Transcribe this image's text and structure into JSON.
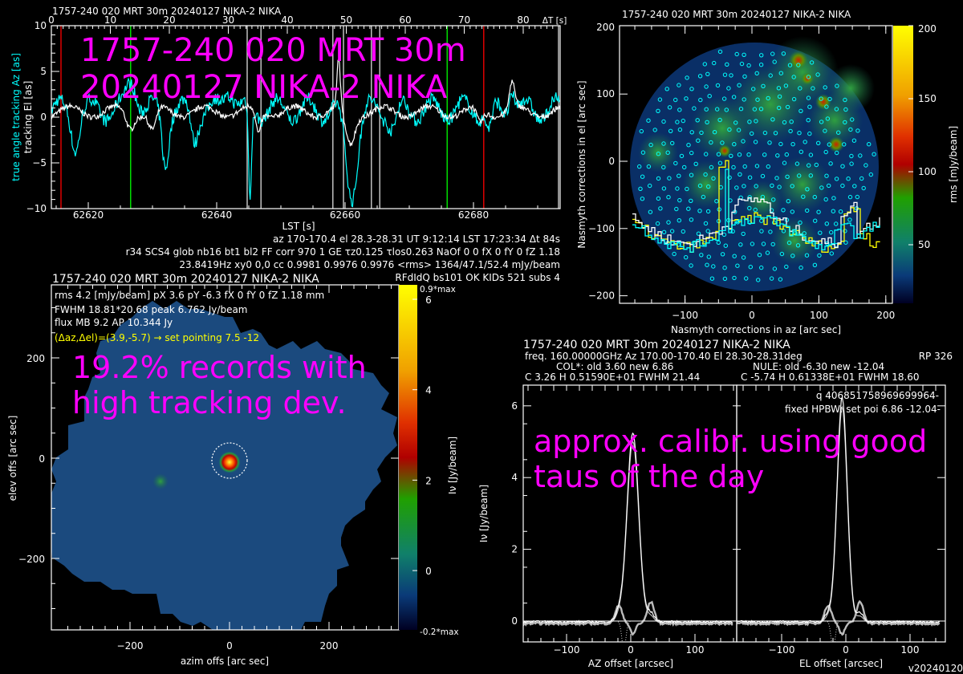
{
  "colors": {
    "cyan": "#00ffff",
    "white": "#ffffff",
    "red": "#ff0000",
    "green": "#00ff00",
    "yellow": "#ffff00",
    "magenta": "#ff00ff"
  },
  "overlays": {
    "title_big": "1757-240 020 MRT 30m  20240127 NIKA-2 NIKA",
    "tracking_warning": "19.2% records with high tracking dev.",
    "calibration_note": "approx. calibr. using good taus of the day"
  },
  "chart_data": [
    {
      "type": "line",
      "id": "tracking",
      "title": "1757-240 020 MRT 30m  20240127 NIKA-2 NIKA",
      "xlabel": "LST [s]",
      "ylabel_cyan": "true angle tracking Az [as]",
      "ylabel_white": "tracking El [as]",
      "xlim": [
        62614.25,
        62693.5
      ],
      "ylim": [
        -10,
        10
      ],
      "x_ticks": [
        62620,
        62640,
        62660,
        62680
      ],
      "y_ticks": [
        10,
        5,
        0,
        -5,
        -10
      ],
      "top_axis_label": "ΔT [s]",
      "top_ticks": [
        "0",
        "10",
        "20",
        "30",
        "40",
        "50",
        "60",
        "70",
        "80"
      ],
      "markers": {
        "red": [
          62615.75,
          62681.6
        ],
        "green": [
          62626.6,
          62675.9
        ],
        "white": [
          62644.75,
          62646.9,
          62658.1,
          62659.75,
          62664.1,
          62665.4,
          62693.25
        ]
      },
      "series": [
        {
          "name": "tracking El",
          "color": "#ffffff"
        },
        {
          "name": "true angle tracking Az",
          "color": "#00ffff"
        }
      ],
      "info_lines": [
        "az 170-170.4 el 28.3-28.31 UT 9:12:14 LST 17:23:34 Δt 84s",
        "r34 SCS4 glob nb16 bt1 bl2 FF corr 970 1 GE τz0.125 τlos0.263 NaOf 0 0 fX 0 fY 0 fZ 1.18",
        "23.8419Hz xy0 0,0 cc 0.9981 0.9976 0.9976 <rms> 1364/47.1/52.4 mJy/beam"
      ]
    },
    {
      "type": "heatmap",
      "id": "beam_map",
      "title": "1757-240 020 MRT 30m  20240127 NIKA-2 NIKA",
      "title_right": "RFdIdQ bs101 OK KIDs 521 subs 4",
      "xlabel": "azim offs [arc sec]",
      "ylabel": "elev offs [arc sec]",
      "colorbar_label": "Iν [Jy/beam]",
      "colorbar_top": "0.9*max",
      "colorbar_bottom": "-0.2*max",
      "colorbar_ticks": [
        "6",
        "4",
        "2",
        "0"
      ],
      "x_ticks": [
        "-200",
        "0",
        "200"
      ],
      "y_ticks": [
        "200",
        "0",
        "-200"
      ],
      "xlim": [
        -340,
        340
      ],
      "ylim": [
        -340,
        340
      ],
      "source": {
        "az": 3.9,
        "el": -5.7,
        "peak": 6.762
      },
      "lines": [
        "rms 4.2 [mJy/beam] pX 3.6 pY -6.3 fX 0 fY 0 fZ 1.18 mm",
        "FWHM 18.81*20.68 peak 6.762 Jy/beam",
        "flux MB 9.2 AP 10.344 Jy"
      ],
      "pointing_line": "(Δaz,Δel)=(3.9,-5.7) → set pointing 7.5 -12"
    },
    {
      "type": "heatmap",
      "id": "nasmyth_rms",
      "title": "1757-240 020 MRT 30m  20240127 NIKA-2 NIKA",
      "xlabel": "Nasmyth corrections in az [arc sec]",
      "ylabel": "Nasmyth corrections in el [arc sec]",
      "colorbar_label": "rms [mJy/beam]",
      "colorbar_ticks": [
        "200",
        "150",
        "100",
        "50"
      ],
      "x_ticks": [
        "-100",
        "0",
        "100",
        "200"
      ],
      "y_ticks": [
        "100",
        "0",
        "-100",
        "-200"
      ],
      "xlim": [
        -195,
        210
      ],
      "ylim": [
        -210,
        200
      ]
    },
    {
      "type": "line",
      "id": "profiles",
      "title": "1757-240 020 MRT 30m  20240127 NIKA-2 NIKA",
      "header": [
        "freq. 160.00000GHz  Az 170.00-170.40 El 28.30-28.31deg",
        "RP  326",
        "COL*: old    3.60 new    6.86",
        "NULE: old   -6.30 new  -12.04",
        "C   3.26     H  0.51590E+01  FWHM  21.44",
        "C  -5.74     H  0.61338E+01  FWHM  18.60"
      ],
      "q_line": "q 406851758969699964-",
      "fixed_line": "fixed HPBW: set poi    6.86 -12.04-",
      "ylabel": "Iν [Jy/beam]",
      "y_ticks": [
        "6",
        "4",
        "2",
        "0"
      ],
      "ylim": [
        -0.4,
        6.5
      ],
      "az": {
        "xlabel": "AZ offset [arcsec]",
        "x_ticks": [
          "-100",
          "0",
          "100"
        ],
        "xlim": [
          -207,
          160
        ],
        "center": 3.26,
        "height": 5.159,
        "fwhm": 21.44
      },
      "el": {
        "xlabel": "EL offset [arcsec]",
        "x_ticks": [
          "-100",
          "0",
          "100"
        ],
        "xlim": [
          -175,
          147
        ],
        "center": -5.74,
        "height": 6.1338,
        "fwhm": 18.6
      }
    }
  ],
  "version": "v20240120"
}
